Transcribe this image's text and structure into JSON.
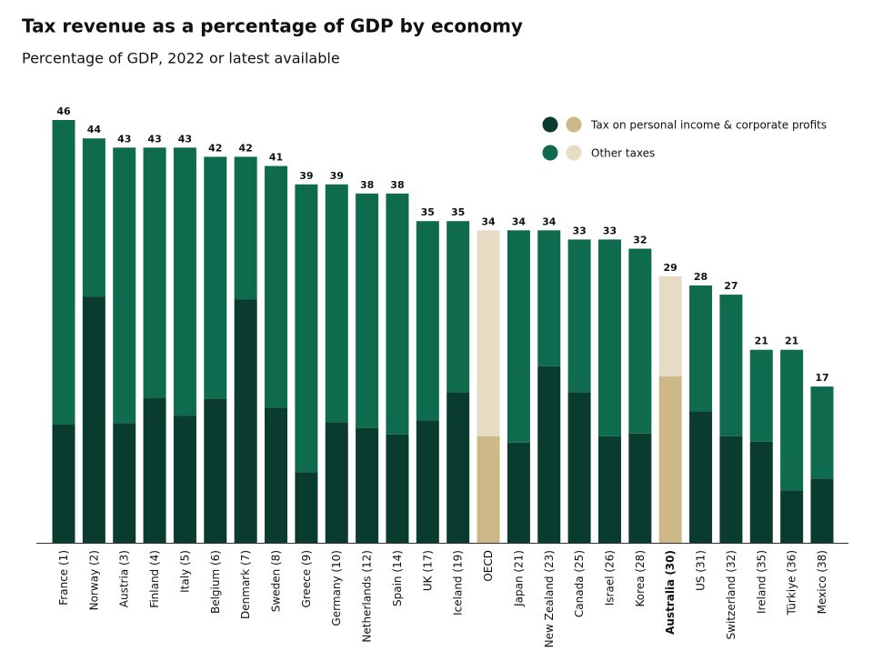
{
  "chart_data": {
    "type": "stacked_bar",
    "title": "Tax revenue as a percentage of GDP by economy",
    "subtitle": "Percentage of GDP, 2022 or latest available",
    "categories": [
      "France (1)",
      "Norway (2)",
      "Austria (3)",
      "Finland (4)",
      "Italy (5)",
      "Belgium (6)",
      "Denmark (7)",
      "Sweden (8)",
      "Greece (9)",
      "Germany (10)",
      "Netherlands (12)",
      "Spain (14)",
      "UK (17)",
      "Iceland (19)",
      "OECD",
      "Japan (21)",
      "New Zealand (23)",
      "Canada (25)",
      "Israel (26)",
      "Korea (28)",
      "Australia (30)",
      "US (31)",
      "Switzerland (32)",
      "Ireland (35)",
      "Türkiye (36)",
      "Mexico (38)"
    ],
    "series": [
      {
        "name": "Tax on personal income & corporate profits",
        "color": "#093b2f",
        "highlight_color": "#cdb888",
        "values": [
          12.9,
          26.8,
          13.0,
          15.8,
          13.8,
          15.7,
          26.5,
          14.7,
          7.7,
          13.1,
          12.5,
          11.8,
          13.3,
          16.4,
          11.6,
          10.9,
          19.2,
          16.4,
          11.6,
          11.9,
          18.1,
          14.3,
          11.6,
          11.0,
          5.7,
          7.0
        ]
      },
      {
        "name": "Other taxes",
        "color": "#0f6b4e",
        "highlight_color": "#e6dcc3",
        "values": [
          33.1,
          17.2,
          30.0,
          27.2,
          29.2,
          26.3,
          15.5,
          26.3,
          31.3,
          25.9,
          25.5,
          26.2,
          21.7,
          18.6,
          22.4,
          23.1,
          14.8,
          16.6,
          21.4,
          20.1,
          10.9,
          13.7,
          15.4,
          10.0,
          15.3,
          10.0
        ]
      }
    ],
    "totals": [
      46,
      44,
      43,
      43,
      43,
      42,
      42,
      41,
      39,
      39,
      38,
      38,
      35,
      35,
      34,
      34,
      34,
      33,
      33,
      32,
      29,
      28,
      27,
      21,
      21,
      17
    ],
    "highlight_indices": [
      14,
      20
    ],
    "ylim": [
      0,
      46
    ],
    "legend": "top-right"
  }
}
